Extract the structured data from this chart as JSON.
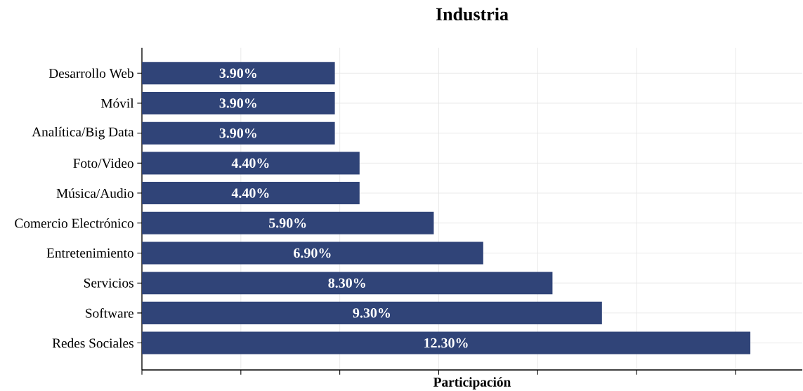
{
  "chart_data": {
    "type": "bar",
    "orientation": "horizontal",
    "title": "Industria",
    "xlabel": "Participación",
    "categories": [
      "Desarrollo Web",
      "Móvil",
      "Analítica/Big Data",
      "Foto/Video",
      "Música/Audio",
      "Comercio Electrónico",
      "Entretenimiento",
      "Servicios",
      "Software",
      "Redes Sociales"
    ],
    "values": [
      3.9,
      3.9,
      3.9,
      4.4,
      4.4,
      5.9,
      6.9,
      8.3,
      9.3,
      12.3
    ],
    "value_labels": [
      "3.90%",
      "3.90%",
      "3.90%",
      "4.40%",
      "4.40%",
      "5.90%",
      "6.90%",
      "8.30%",
      "9.30%",
      "12.30%"
    ],
    "color": "#304478",
    "xlim": [
      0,
      13.35
    ],
    "xticks": [
      {
        "value": 0,
        "label": null
      },
      {
        "value": 2,
        "label": null
      },
      {
        "value": 4,
        "label": null
      },
      {
        "value": 6,
        "label": null
      },
      {
        "value": 8,
        "label": null
      },
      {
        "value": 10,
        "label": null
      },
      {
        "value": 12,
        "label": null
      }
    ],
    "tick_labels": "y",
    "grid": true
  }
}
